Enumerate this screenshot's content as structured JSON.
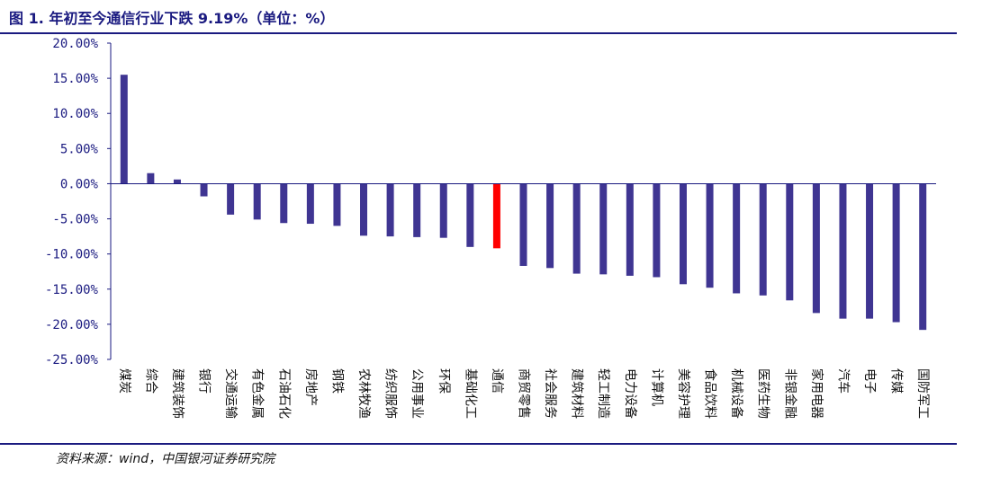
{
  "header": {
    "title": "图 1. 年初至今通信行业下跌 9.19%（单位：%）"
  },
  "footer": {
    "source": "资料来源：wind，中国银河证券研究院"
  },
  "colors": {
    "bar": "#3f3592",
    "highlight": "#ff0000",
    "title": "#1a1a80",
    "axis": "#1a1a80"
  },
  "chart_data": {
    "type": "bar",
    "title": "年初至今通信行业下跌 9.19%（单位：%）",
    "xlabel": "",
    "ylabel": "",
    "ylim": [
      -25,
      20
    ],
    "ytick_step": 5,
    "ytick_format": "percent_2dp",
    "grid": false,
    "legend": "none",
    "highlight_category": "通信",
    "categories": [
      "煤炭",
      "综合",
      "建筑装饰",
      "银行",
      "交通运输",
      "有色金属",
      "石油石化",
      "房地产",
      "钢铁",
      "农林牧渔",
      "纺织服饰",
      "公用事业",
      "环保",
      "基础化工",
      "通信",
      "商贸零售",
      "社会服务",
      "建筑材料",
      "轻工制造",
      "电力设备",
      "计算机",
      "美容护理",
      "食品饮料",
      "机械设备",
      "医药生物",
      "非银金融",
      "家用电器",
      "汽车",
      "电子",
      "传媒",
      "国防军工"
    ],
    "values": [
      15.5,
      1.5,
      0.6,
      -1.8,
      -4.4,
      -5.1,
      -5.6,
      -5.7,
      -6.0,
      -7.4,
      -7.5,
      -7.6,
      -7.7,
      -9.0,
      -9.19,
      -11.7,
      -12.0,
      -12.8,
      -12.9,
      -13.1,
      -13.3,
      -14.3,
      -14.8,
      -15.6,
      -15.9,
      -16.6,
      -18.4,
      -19.2,
      -19.2,
      -19.7,
      -20.8
    ]
  }
}
